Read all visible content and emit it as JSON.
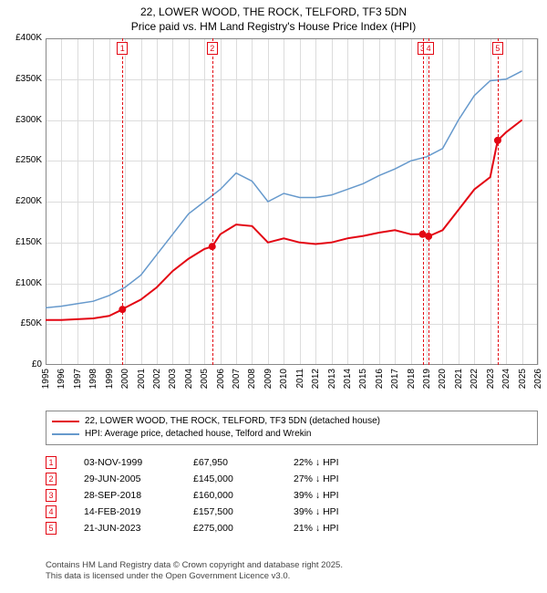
{
  "title": {
    "line1": "22, LOWER WOOD, THE ROCK, TELFORD, TF3 5DN",
    "line2": "Price paid vs. HM Land Registry's House Price Index (HPI)"
  },
  "chart": {
    "type": "line",
    "background_color": "#ffffff",
    "border_color": "#888888",
    "grid_color": "#dcdcdc",
    "font_family": "Arial",
    "yaxis": {
      "min": 0,
      "max": 400000,
      "step": 50000,
      "ticks": [
        "£0",
        "£50K",
        "£100K",
        "£150K",
        "£200K",
        "£250K",
        "£300K",
        "£350K",
        "£400K"
      ],
      "label_fontsize": 10
    },
    "xaxis": {
      "min": 1995,
      "max": 2026,
      "step": 1,
      "ticks": [
        "1995",
        "1996",
        "1997",
        "1998",
        "1999",
        "2000",
        "2001",
        "2002",
        "2003",
        "2004",
        "2005",
        "2006",
        "2007",
        "2008",
        "2009",
        "2010",
        "2011",
        "2012",
        "2013",
        "2014",
        "2015",
        "2016",
        "2017",
        "2018",
        "2019",
        "2020",
        "2021",
        "2022",
        "2023",
        "2024",
        "2025",
        "2026"
      ],
      "label_fontsize": 10,
      "rotation": 90
    },
    "series": [
      {
        "name": "price_paid",
        "label": "22, LOWER WOOD, THE ROCK, TELFORD, TF3 5DN (detached house)",
        "color": "#e30613",
        "line_width": 2,
        "data_years": [
          1995,
          1996,
          1997,
          1998,
          1999,
          1999.84,
          2000,
          2001,
          2002,
          2003,
          2004,
          2005,
          2005.49,
          2006,
          2007,
          2008,
          2009,
          2010,
          2011,
          2012,
          2013,
          2014,
          2015,
          2016,
          2017,
          2018,
          2018.74,
          2019,
          2019.12,
          2020,
          2021,
          2022,
          2023,
          2023.47,
          2024,
          2025
        ],
        "data_values": [
          55000,
          55000,
          56000,
          57000,
          60000,
          67950,
          70000,
          80000,
          95000,
          115000,
          130000,
          142000,
          145000,
          160000,
          172000,
          170000,
          150000,
          155000,
          150000,
          148000,
          150000,
          155000,
          158000,
          162000,
          165000,
          160000,
          160000,
          158000,
          157500,
          165000,
          190000,
          215000,
          230000,
          275000,
          285000,
          300000
        ],
        "sale_markers": [
          {
            "year": 1999.84,
            "value": 67950
          },
          {
            "year": 2005.49,
            "value": 145000
          },
          {
            "year": 2018.74,
            "value": 160000
          },
          {
            "year": 2019.12,
            "value": 157500
          },
          {
            "year": 2023.47,
            "value": 275000
          }
        ],
        "marker_style": "circle",
        "marker_size": 4
      },
      {
        "name": "hpi",
        "label": "HPI: Average price, detached house, Telford and Wrekin",
        "color": "#6699cc",
        "line_width": 1.5,
        "data_years": [
          1995,
          1996,
          1997,
          1998,
          1999,
          2000,
          2001,
          2002,
          2003,
          2004,
          2005,
          2006,
          2007,
          2008,
          2009,
          2010,
          2011,
          2012,
          2013,
          2014,
          2015,
          2016,
          2017,
          2018,
          2019,
          2020,
          2021,
          2022,
          2023,
          2024,
          2025
        ],
        "data_values": [
          70000,
          72000,
          75000,
          78000,
          85000,
          95000,
          110000,
          135000,
          160000,
          185000,
          200000,
          215000,
          235000,
          225000,
          200000,
          210000,
          205000,
          205000,
          208000,
          215000,
          222000,
          232000,
          240000,
          250000,
          255000,
          265000,
          300000,
          330000,
          348000,
          350000,
          360000
        ]
      }
    ],
    "event_markers": [
      {
        "num": "1",
        "year": 1999.84,
        "color": "#e30613"
      },
      {
        "num": "2",
        "year": 2005.49,
        "color": "#e30613"
      },
      {
        "num": "3",
        "year": 2018.74,
        "color": "#e30613"
      },
      {
        "num": "4",
        "year": 2019.12,
        "color": "#e30613"
      },
      {
        "num": "5",
        "year": 2023.47,
        "color": "#e30613"
      }
    ]
  },
  "legend": {
    "border_color": "#888888",
    "items": [
      {
        "color": "#e30613",
        "width": 2,
        "label": "22, LOWER WOOD, THE ROCK, TELFORD, TF3 5DN (detached house)"
      },
      {
        "color": "#6699cc",
        "width": 1.5,
        "label": "HPI: Average price, detached house, Telford and Wrekin"
      }
    ]
  },
  "sales": [
    {
      "num": "1",
      "color": "#e30613",
      "date": "03-NOV-1999",
      "price": "£67,950",
      "diff": "22% ↓ HPI"
    },
    {
      "num": "2",
      "color": "#e30613",
      "date": "29-JUN-2005",
      "price": "£145,000",
      "diff": "27% ↓ HPI"
    },
    {
      "num": "3",
      "color": "#e30613",
      "date": "28-SEP-2018",
      "price": "£160,000",
      "diff": "39% ↓ HPI"
    },
    {
      "num": "4",
      "color": "#e30613",
      "date": "14-FEB-2019",
      "price": "£157,500",
      "diff": "39% ↓ HPI"
    },
    {
      "num": "5",
      "color": "#e30613",
      "date": "21-JUN-2023",
      "price": "£275,000",
      "diff": "21% ↓ HPI"
    }
  ],
  "footer": {
    "line1": "Contains HM Land Registry data © Crown copyright and database right 2025.",
    "line2": "This data is licensed under the Open Government Licence v3.0."
  }
}
